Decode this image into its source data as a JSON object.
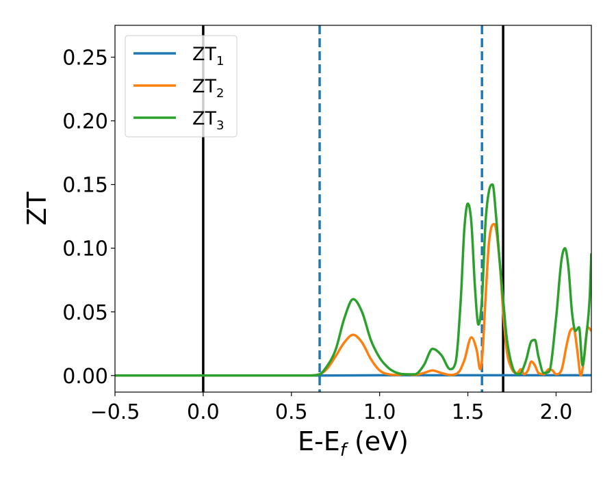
{
  "chart_data": {
    "type": "line",
    "xlabel": "E-E",
    "xlabel_sub": "f",
    "xlabel_unit": " (eV)",
    "ylabel": "ZT",
    "xlim": [
      -0.5,
      2.2
    ],
    "ylim": [
      -0.013,
      0.275
    ],
    "xticks": [
      -0.5,
      0.0,
      0.5,
      1.0,
      1.5,
      2.0
    ],
    "xtick_labels": [
      "−0.5",
      "0.0",
      "0.5",
      "1.0",
      "1.5",
      "2.0"
    ],
    "yticks": [
      0.0,
      0.05,
      0.1,
      0.15,
      0.2,
      0.25
    ],
    "ytick_labels": [
      "0.00",
      "0.05",
      "0.10",
      "0.15",
      "0.20",
      "0.25"
    ],
    "grid": false,
    "legend_position": "top-left",
    "vlines": [
      {
        "x": 0.0,
        "color": "#000000",
        "style": "solid"
      },
      {
        "x": 1.7,
        "color": "#000000",
        "style": "solid"
      },
      {
        "x": 0.66,
        "color": "#1f77b4",
        "style": "dashed"
      },
      {
        "x": 1.58,
        "color": "#1f77b4",
        "style": "dashed"
      }
    ],
    "series": [
      {
        "name": "ZT",
        "sub": "1",
        "color": "#1f77b4",
        "x": [
          -0.5,
          0.66,
          1.0,
          1.5,
          2.2
        ],
        "y": [
          0,
          0,
          0.0002,
          0.0002,
          0.0002
        ]
      },
      {
        "name": "ZT",
        "sub": "2",
        "color": "#ff7f0e",
        "x": [
          -0.5,
          0.6,
          0.66,
          0.7,
          0.75,
          0.8,
          0.85,
          0.9,
          0.95,
          1.0,
          1.05,
          1.1,
          1.15,
          1.2,
          1.25,
          1.3,
          1.35,
          1.4,
          1.45,
          1.48,
          1.52,
          1.55,
          1.57,
          1.58,
          1.6,
          1.62,
          1.65,
          1.68,
          1.7,
          1.72,
          1.75,
          1.78,
          1.8,
          1.82,
          1.84,
          1.86,
          1.88,
          1.9,
          1.93,
          1.96,
          1.98,
          2.0,
          2.03,
          2.06,
          2.08,
          2.1,
          2.12,
          2.14,
          2.16,
          2.18,
          2.2
        ],
        "y": [
          0,
          0,
          0.001,
          0.005,
          0.015,
          0.026,
          0.032,
          0.026,
          0.013,
          0.004,
          0.001,
          0.0005,
          0.001,
          0.0005,
          0.002,
          0.004,
          0.002,
          0.0005,
          0.003,
          0.012,
          0.03,
          0.02,
          0.005,
          0.012,
          0.06,
          0.105,
          0.119,
          0.09,
          0.05,
          0.02,
          0.005,
          0.002,
          0.005,
          0.001,
          0.004,
          0.011,
          0.008,
          0.002,
          0.001,
          0.005,
          0.004,
          0.001,
          0.004,
          0.024,
          0.035,
          0.037,
          0.02,
          0.0,
          0.015,
          0.038,
          0.035
        ]
      },
      {
        "name": "ZT",
        "sub": "3",
        "color": "#2ca02c",
        "x": [
          -0.5,
          0.6,
          0.66,
          0.7,
          0.75,
          0.8,
          0.85,
          0.9,
          0.95,
          1.0,
          1.05,
          1.1,
          1.15,
          1.2,
          1.25,
          1.3,
          1.35,
          1.4,
          1.43,
          1.46,
          1.48,
          1.5,
          1.52,
          1.54,
          1.56,
          1.58,
          1.6,
          1.62,
          1.64,
          1.66,
          1.68,
          1.7,
          1.72,
          1.75,
          1.78,
          1.8,
          1.83,
          1.86,
          1.88,
          1.9,
          1.93,
          1.96,
          2.0,
          2.03,
          2.05,
          2.07,
          2.09,
          2.11,
          2.13,
          2.15,
          2.17,
          2.19,
          2.2
        ],
        "y": [
          0,
          0,
          0.001,
          0.007,
          0.02,
          0.045,
          0.06,
          0.05,
          0.028,
          0.014,
          0.006,
          0.002,
          0.001,
          0.001,
          0.008,
          0.021,
          0.016,
          0.005,
          0.01,
          0.06,
          0.115,
          0.135,
          0.12,
          0.07,
          0.04,
          0.06,
          0.12,
          0.145,
          0.15,
          0.125,
          0.09,
          0.06,
          0.03,
          0.008,
          0.001,
          0.002,
          0.012,
          0.027,
          0.028,
          0.015,
          0.002,
          0.003,
          0.045,
          0.09,
          0.1,
          0.085,
          0.05,
          0.035,
          0.038,
          0.008,
          0.03,
          0.06,
          0.096
        ]
      }
    ]
  }
}
